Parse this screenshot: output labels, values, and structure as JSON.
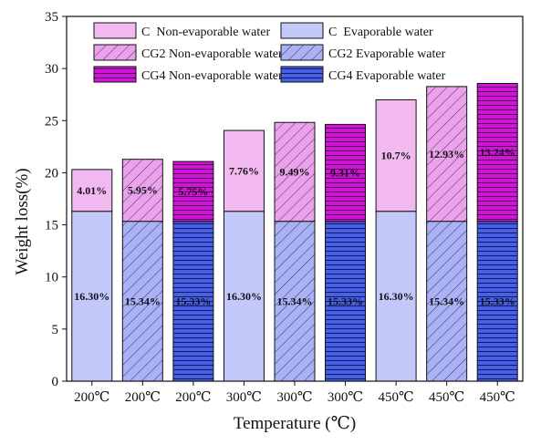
{
  "chart_data": {
    "type": "bar",
    "stacked": true,
    "xlabel": "Temperature (℃)",
    "ylabel": "Weight loss(%)",
    "ylim": [
      0,
      35
    ],
    "yticks": [
      0,
      5,
      10,
      15,
      20,
      25,
      30,
      35
    ],
    "categories": [
      "200℃",
      "200℃",
      "200℃",
      "300℃",
      "300℃",
      "300℃",
      "450℃",
      "450℃",
      "450℃"
    ],
    "bar_groups": [
      "C",
      "CG2",
      "CG4",
      "C",
      "CG2",
      "CG4",
      "C",
      "CG2",
      "CG4"
    ],
    "series": [
      {
        "name": "Evaporable water",
        "values": [
          16.3,
          15.34,
          15.33,
          16.3,
          15.34,
          15.33,
          16.3,
          15.34,
          15.33
        ],
        "labels": [
          "16.30%",
          "15.34%",
          "15.33%",
          "16.30%",
          "15.34%",
          "15.33%",
          "16.30%",
          "15.34%",
          "15.33%"
        ]
      },
      {
        "name": "Non-evaporable water",
        "values": [
          4.01,
          5.95,
          5.75,
          7.76,
          9.49,
          9.31,
          10.7,
          12.93,
          13.24
        ],
        "labels": [
          "4.01%",
          "5.95%",
          "5.75%",
          "7.76%",
          "9.49%",
          "9.31%",
          "10.7%",
          "12.93%",
          "13.24%"
        ]
      }
    ],
    "legend": {
      "placement": "top",
      "entries": [
        {
          "label": "C  Non-evaporable water",
          "style": "C-non"
        },
        {
          "label": "C  Evaporable water",
          "style": "C-evap"
        },
        {
          "label": "CG2 Non-evaporable water",
          "style": "CG2-non"
        },
        {
          "label": "CG2 Evaporable water",
          "style": "CG2-evap"
        },
        {
          "label": "CG4 Non-evaporable water",
          "style": "CG4-non"
        },
        {
          "label": "CG4 Evaporable water",
          "style": "CG4-evap"
        }
      ]
    },
    "colors": {
      "C-non": "#f2b8f0",
      "C-evap": "#c3c8fb",
      "CG2-non": "#e9a3ea",
      "CG2-evap": "#aab2f3",
      "CG4-non": "#d214d8",
      "CG4-evap": "#4860e4"
    },
    "grid": false
  }
}
